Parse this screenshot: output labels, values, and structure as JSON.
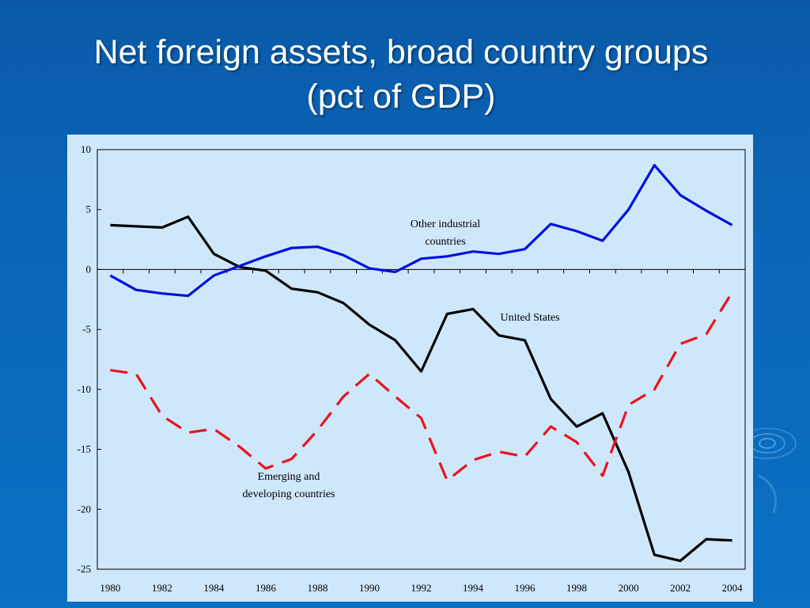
{
  "slide": {
    "title_line1": "Net foreign assets, broad country groups",
    "title_line2": "(pct of GDP)"
  },
  "colors": {
    "background": "#0a66b8",
    "panel": "#cfe7fb",
    "us_line": "#000000",
    "industrial_line": "#0010e0",
    "emerging_line": "#e8141c"
  },
  "chart_data": {
    "type": "line",
    "x": [
      1980,
      1981,
      1982,
      1983,
      1984,
      1985,
      1986,
      1987,
      1988,
      1989,
      1990,
      1991,
      1992,
      1993,
      1994,
      1995,
      1996,
      1997,
      1998,
      1999,
      2000,
      2001,
      2002,
      2003,
      2004
    ],
    "x_tick_labels": [
      "1980",
      "1982",
      "1984",
      "1986",
      "1988",
      "1990",
      "1992",
      "1994",
      "1996",
      "1998",
      "2000",
      "2002",
      "2004"
    ],
    "y_tick_labels": [
      "10",
      "5",
      "0",
      "-5",
      "-10",
      "-15",
      "-20",
      "-25"
    ],
    "ylim": [
      -25,
      10
    ],
    "grid": false,
    "series": [
      {
        "name": "United States",
        "style": "solid",
        "color": "#000000",
        "values": [
          3.7,
          3.6,
          3.5,
          4.4,
          1.3,
          0.2,
          -0.1,
          -1.6,
          -1.9,
          -2.8,
          -4.6,
          -5.9,
          -8.5,
          -3.7,
          -3.3,
          -5.5,
          -5.9,
          -10.8,
          -13.1,
          -12.0,
          -16.9,
          -23.8,
          -24.3,
          -22.5,
          -22.6
        ]
      },
      {
        "name": "Other industrial countries",
        "style": "solid",
        "color": "#0010e0",
        "values": [
          -0.5,
          -1.7,
          -2.0,
          -2.2,
          -0.5,
          0.3,
          1.1,
          1.8,
          1.9,
          1.2,
          0.1,
          -0.2,
          0.9,
          1.1,
          1.5,
          1.3,
          1.7,
          3.8,
          3.2,
          2.4,
          5.0,
          8.7,
          6.2,
          4.9,
          3.7
        ]
      },
      {
        "name": "Emerging and developing countries",
        "style": "dashed",
        "color": "#e8141c",
        "values": [
          -8.4,
          -8.7,
          -12.2,
          -13.6,
          -13.3,
          -14.8,
          -16.6,
          -15.8,
          -13.4,
          -10.6,
          -8.7,
          -10.6,
          -12.4,
          -17.6,
          -15.9,
          -15.2,
          -15.6,
          -13.1,
          -14.4,
          -17.2,
          -11.3,
          -10.0,
          -6.2,
          -5.4,
          -1.9
        ]
      }
    ],
    "annotations": {
      "industrial_line1": "Other industrial",
      "industrial_line2": "countries",
      "us": "United States",
      "emerging_line1": "Emerging and",
      "emerging_line2": "developing countries"
    }
  }
}
